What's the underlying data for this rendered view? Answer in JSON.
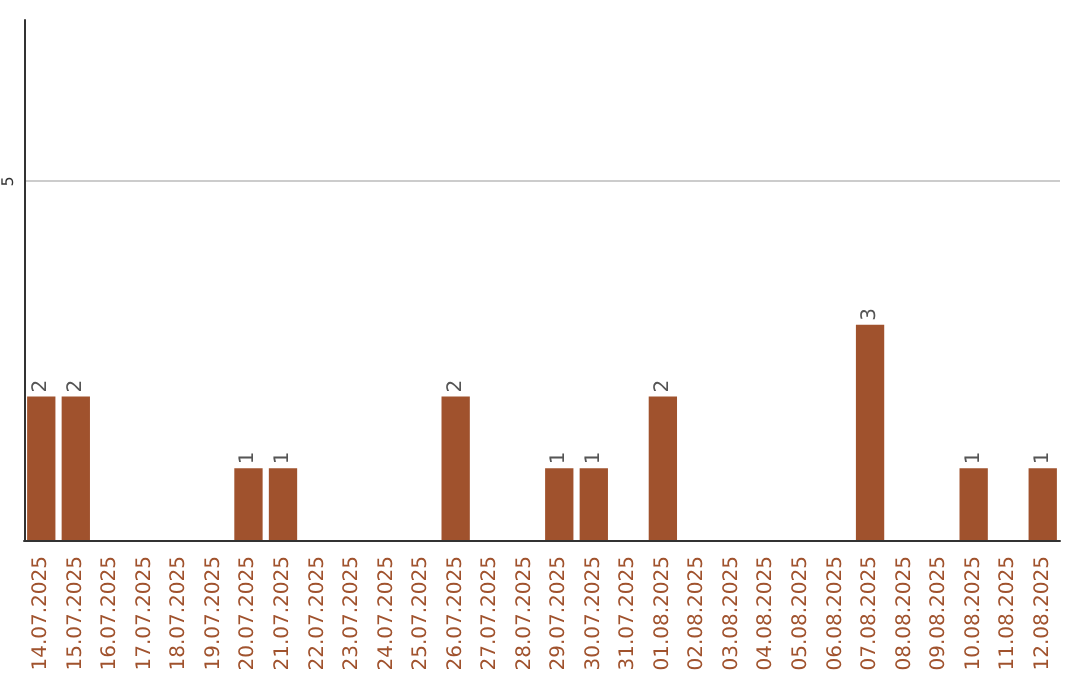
{
  "chart_data": {
    "type": "bar",
    "categories": [
      "14.07.2025",
      "15.07.2025",
      "16.07.2025",
      "17.07.2025",
      "18.07.2025",
      "19.07.2025",
      "20.07.2025",
      "21.07.2025",
      "22.07.2025",
      "23.07.2025",
      "24.07.2025",
      "25.07.2025",
      "26.07.2025",
      "27.07.2025",
      "28.07.2025",
      "29.07.2025",
      "30.07.2025",
      "31.07.2025",
      "01.08.2025",
      "02.08.2025",
      "03.08.2025",
      "04.08.2025",
      "05.08.2025",
      "06.08.2025",
      "07.08.2025",
      "08.08.2025",
      "09.08.2025",
      "10.08.2025",
      "11.08.2025",
      "12.08.2025"
    ],
    "values": [
      2,
      2,
      0,
      0,
      0,
      0,
      1,
      1,
      0,
      0,
      0,
      0,
      2,
      0,
      0,
      1,
      1,
      0,
      2,
      0,
      0,
      0,
      0,
      0,
      3,
      0,
      0,
      1,
      0,
      1
    ],
    "value_labels": [
      "2",
      "2",
      null,
      null,
      null,
      null,
      "1",
      "1",
      null,
      null,
      null,
      null,
      "2",
      null,
      null,
      "1",
      "1",
      null,
      "2",
      null,
      null,
      null,
      null,
      null,
      "3",
      null,
      null,
      "1",
      null,
      "1"
    ],
    "color": "#a0522d",
    "ylim": [
      0,
      7.25
    ],
    "yticks": [
      5
    ],
    "grid": "y"
  }
}
